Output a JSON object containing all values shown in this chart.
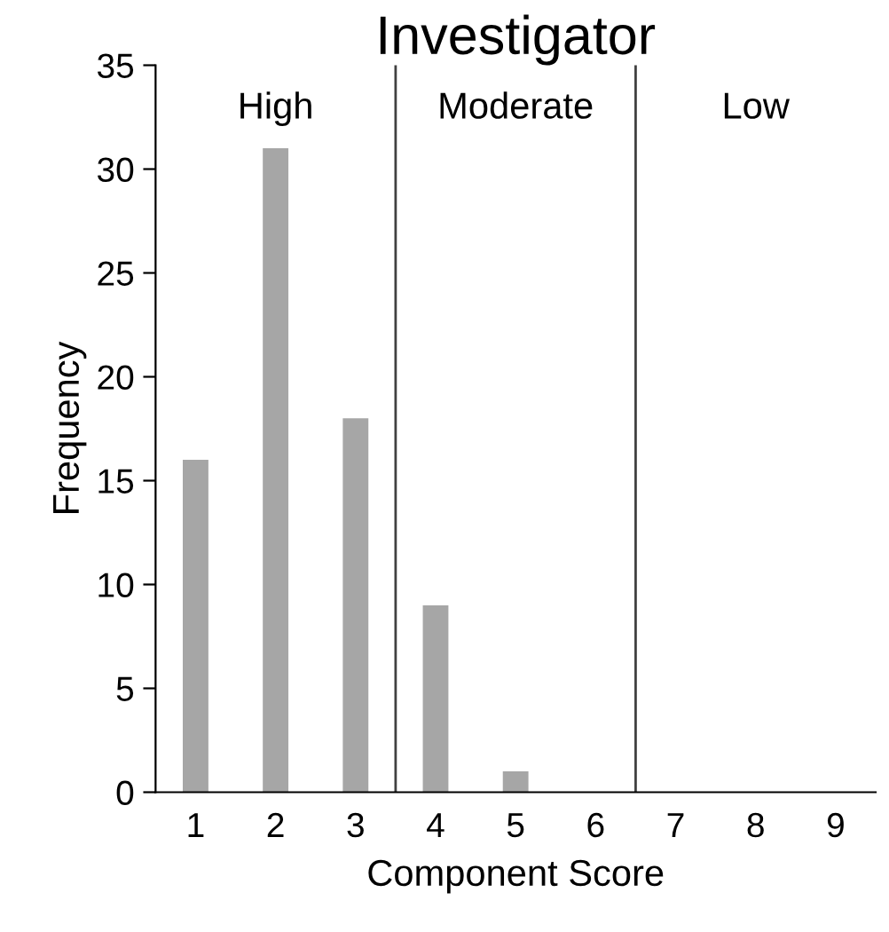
{
  "chart_data": {
    "type": "bar",
    "title": "Investigator",
    "xlabel": "Component Score",
    "ylabel": "Frequency",
    "x": [
      1,
      2,
      3,
      4,
      5,
      6,
      7,
      8,
      9
    ],
    "values": [
      16,
      31,
      18,
      9,
      1,
      0,
      0,
      0,
      0
    ],
    "color": "#a6a6a6",
    "xlim": [
      0.5,
      9.5
    ],
    "xticks": [
      1,
      2,
      3,
      4,
      5,
      6,
      7,
      8,
      9
    ],
    "ylim": [
      0,
      35
    ],
    "yticks": [
      0,
      5,
      10,
      15,
      20,
      25,
      30,
      35
    ],
    "ref_lines": [
      {
        "axis": "x",
        "value": 3.5,
        "color": "#404040"
      },
      {
        "axis": "x",
        "value": 6.5,
        "color": "#404040"
      }
    ],
    "annotations": [
      "High",
      "Moderate",
      "Low"
    ],
    "grid": false
  }
}
